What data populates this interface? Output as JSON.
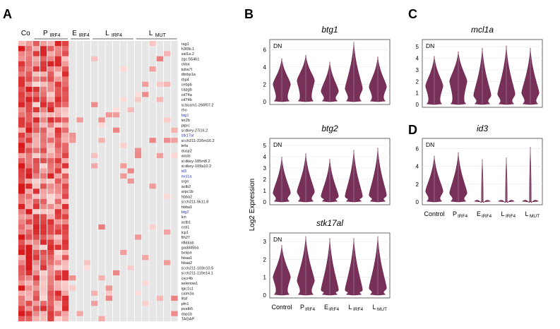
{
  "panel_letters": [
    "A",
    "B",
    "C",
    "D"
  ],
  "heatmap": {
    "groups": [
      {
        "main": "Co",
        "sub": "",
        "cols": 2
      },
      {
        "main": "P",
        "sub": "IRF4",
        "cols": 5
      },
      {
        "main": "E",
        "sub": "IRF4",
        "cols": 3
      },
      {
        "main": "L",
        "sub": "IRF4",
        "cols": 6
      },
      {
        "main": "L",
        "sub": "MUT",
        "cols": 6
      }
    ],
    "genes": [
      {
        "name": "rag1",
        "highlight": false
      },
      {
        "name": "h3f3b.1",
        "highlight": false
      },
      {
        "name": "sat1a.2",
        "highlight": false
      },
      {
        "name": "zgc:55461",
        "highlight": false
      },
      {
        "name": "ckba",
        "highlight": false
      },
      {
        "name": "tuba7l",
        "highlight": false
      },
      {
        "name": "dtnbp1a",
        "highlight": false
      },
      {
        "name": "rbp4",
        "highlight": false
      },
      {
        "name": "cebpb",
        "highlight": false
      },
      {
        "name": "capgb",
        "highlight": false
      },
      {
        "name": "cd74a",
        "highlight": false
      },
      {
        "name": "cd74b",
        "highlight": false
      },
      {
        "name": "si:busm1-266f07.2",
        "highlight": false
      },
      {
        "name": "rho",
        "highlight": false
      },
      {
        "name": "btg1",
        "highlight": true
      },
      {
        "name": "ier2b",
        "highlight": false
      },
      {
        "name": "ptprc",
        "highlight": false
      },
      {
        "name": "si:dkey-27i16.2",
        "highlight": false
      },
      {
        "name": "stk17al",
        "highlight": true
      },
      {
        "name": "si:ch211-226m16.2",
        "highlight": false
      },
      {
        "name": "tefa",
        "highlight": false
      },
      {
        "name": "dusp2",
        "highlight": false
      },
      {
        "name": "wasb",
        "highlight": false
      },
      {
        "name": "si:dkey-185m8.2",
        "highlight": false
      },
      {
        "name": "si:dkey-109a10.2",
        "highlight": false
      },
      {
        "name": "id3",
        "highlight": true
      },
      {
        "name": "mcl1a",
        "highlight": true
      },
      {
        "name": "srgn",
        "highlight": false
      },
      {
        "name": "actb2",
        "highlight": false
      },
      {
        "name": "arpc1b",
        "highlight": false
      },
      {
        "name": "hbba2",
        "highlight": false
      },
      {
        "name": "si:ch211-5k11.8",
        "highlight": false
      },
      {
        "name": "hbba1",
        "highlight": false
      },
      {
        "name": "btg2",
        "highlight": true
      },
      {
        "name": "lcn",
        "highlight": false
      },
      {
        "name": "actb1",
        "highlight": false
      },
      {
        "name": "coti1",
        "highlight": false
      },
      {
        "name": "lcp1",
        "highlight": false
      },
      {
        "name": "fth27",
        "highlight": false
      },
      {
        "name": "nfkbiab",
        "highlight": false
      },
      {
        "name": "gadd45ba",
        "highlight": false
      },
      {
        "name": "txnipa",
        "highlight": false
      },
      {
        "name": "hbaa1",
        "highlight": false
      },
      {
        "name": "hbaa2",
        "highlight": false
      },
      {
        "name": "si:ch211-103n10.5",
        "highlight": false
      },
      {
        "name": "si:ch211-119e14.1",
        "highlight": false
      },
      {
        "name": "cxcr4b",
        "highlight": false
      },
      {
        "name": "selenow1",
        "highlight": false
      },
      {
        "name": "igic1s1",
        "highlight": false
      },
      {
        "name": "calm3a",
        "highlight": false
      },
      {
        "name": "litaf",
        "highlight": false
      },
      {
        "name": "pfn1",
        "highlight": false
      },
      {
        "name": "pvalb5",
        "highlight": false
      },
      {
        "name": "dap1b",
        "highlight": false
      },
      {
        "name": "TAGAP",
        "highlight": false
      }
    ],
    "colors": {
      "high": "#d7191c",
      "low": "#fde0dd",
      "empty": "#e6e6e6"
    }
  },
  "violin_panels": [
    {
      "id": "B1",
      "title": "btg1",
      "tag": "DN",
      "ylim": [
        0,
        7
      ],
      "yticks": [
        0,
        2,
        4,
        6
      ],
      "medians": [
        2.0,
        2.4,
        1.2,
        1.5,
        1.7
      ],
      "peaks": [
        5.0,
        5.4,
        4.6,
        6.9,
        5.2
      ]
    },
    {
      "id": "B2",
      "title": "btg2",
      "tag": "DN",
      "ylim": [
        0,
        5.5
      ],
      "yticks": [
        0,
        1,
        2,
        3,
        4,
        5
      ],
      "medians": [
        0.8,
        0.9,
        0.5,
        0.5,
        0.6
      ],
      "peaks": [
        4.0,
        4.3,
        3.8,
        4.6,
        4.8
      ]
    },
    {
      "id": "B3",
      "title": "stk17al",
      "tag": "DN",
      "ylim": [
        0,
        3.4
      ],
      "yticks": [
        0,
        1,
        2,
        3
      ],
      "medians": [
        1.0,
        0.8,
        0.3,
        0.3,
        0.4
      ],
      "peaks": [
        2.8,
        3.3,
        3.2,
        3.2,
        3.3
      ]
    },
    {
      "id": "C",
      "title": "mcl1a",
      "tag": "DN",
      "ylim": [
        0,
        5.5
      ],
      "yticks": [
        0,
        1,
        2,
        3,
        4,
        5
      ],
      "medians": [
        1.6,
        2.0,
        0.8,
        0.9,
        1.0
      ],
      "peaks": [
        4.2,
        4.6,
        4.9,
        5.1,
        4.9
      ]
    },
    {
      "id": "D",
      "title": "id3",
      "tag": "DN",
      "ylim": [
        0,
        7
      ],
      "yticks": [
        0,
        2,
        4,
        6
      ],
      "medians": [
        1.2,
        1.0,
        0.0,
        0.0,
        0.0
      ],
      "peaks": [
        5.2,
        5.6,
        4.8,
        5.0,
        6.2
      ]
    }
  ],
  "y_axis_label": "Log2 Expression",
  "categories": [
    {
      "main": "Control",
      "sub": ""
    },
    {
      "main": "P",
      "sub": "IRF4"
    },
    {
      "main": "E",
      "sub": "IRF4"
    },
    {
      "main": "L",
      "sub": "IRF4"
    },
    {
      "main": "L",
      "sub": "MUT"
    }
  ],
  "violin_color": "#6b1f4b"
}
